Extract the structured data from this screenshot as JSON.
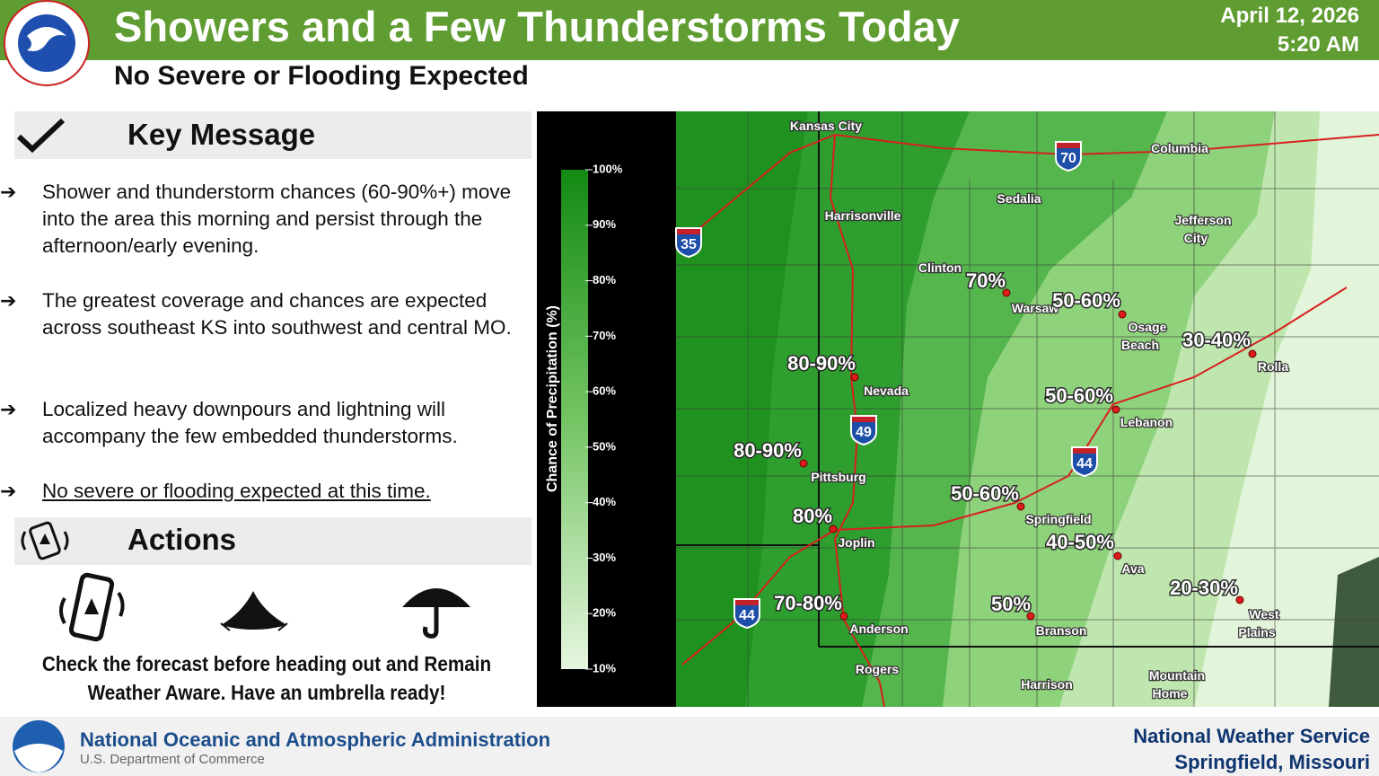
{
  "header": {
    "title": "Showers and a Few Thunderstorms Today",
    "subtitle": "No Severe or Flooding Expected",
    "date": "April 12, 2026",
    "time": "5:20 AM"
  },
  "key_message": {
    "heading": "Key Message",
    "bullets": [
      "Shower and thunderstorm chances (60-90%+) move into the area this morning and persist through the afternoon/early evening.",
      "The greatest coverage and chances are expected across southeast KS into southwest and central MO.",
      "Localized heavy downpours and lightning will accompany the few embedded thunderstorms.",
      "No severe or flooding expected at this time."
    ]
  },
  "actions": {
    "heading": "Actions",
    "text": [
      "Check the forecast before heading out and Remain",
      "Weather Aware. Have an umbrella ready!"
    ]
  },
  "map": {
    "legend_title": "Chance of Precipitation (%)",
    "legend_ticks": [
      "100%",
      "90%",
      "80%",
      "70%",
      "60%",
      "50%",
      "40%",
      "30%",
      "20%",
      "10%"
    ],
    "cities": [
      [
        "Kansas City"
      ],
      [
        "Columbia"
      ],
      [
        "Sedalia"
      ],
      [
        "Jefferson",
        "City"
      ],
      [
        "Harrisonville"
      ],
      [
        "Clinton"
      ],
      [
        "Warsaw"
      ],
      [
        "Osage",
        "Beach"
      ],
      [
        "Rolla"
      ],
      [
        "Nevada"
      ],
      [
        "Lebanon"
      ],
      [
        "Pittsburg"
      ],
      [
        "Springfield"
      ],
      [
        "Joplin"
      ],
      [
        "Ava"
      ],
      [
        "West",
        "Plains"
      ],
      [
        "Anderson"
      ],
      [
        "Branson"
      ],
      [
        "Rogers"
      ],
      [
        "Harrison"
      ],
      [
        "Mountain",
        "Home"
      ]
    ],
    "chances": [
      "70%",
      "50-60%",
      "30-40%",
      "80-90%",
      "50-60%",
      "80-90%",
      "50-60%",
      "80%",
      "40-50%",
      "20-30%",
      "70-80%",
      "50%"
    ],
    "highways": [
      "70",
      "35",
      "49",
      "44",
      "44"
    ]
  },
  "footer": {
    "agency": "National Oceanic and Atmospheric Administration",
    "department": "U.S. Department of Commerce",
    "office": "National Weather Service",
    "location": "Springfield, Missouri"
  }
}
